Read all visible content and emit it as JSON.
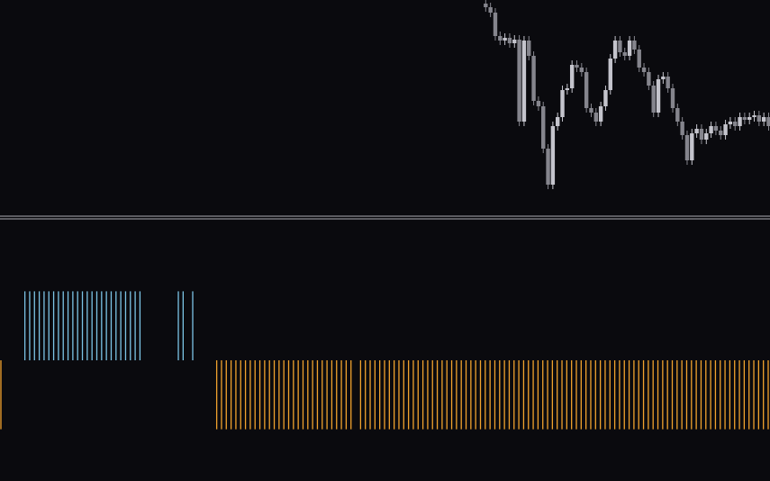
{
  "chart_data": [
    {
      "type": "candlestick",
      "up_color": "#c4c4cc",
      "down_color": "#85858d",
      "xlim": [
        0,
        160
      ],
      "ylim": [
        0,
        240
      ],
      "x": [
        101,
        102,
        103,
        104,
        105,
        106,
        107,
        108,
        109,
        110,
        111,
        112,
        113,
        114,
        115,
        116,
        117,
        118,
        119,
        120,
        121,
        122,
        123,
        124,
        125,
        126,
        127,
        128,
        129,
        130,
        131,
        132,
        133,
        134,
        135,
        136,
        137,
        138,
        139,
        140,
        141,
        142,
        143,
        144,
        145,
        146,
        147,
        148,
        149,
        150,
        151,
        152,
        153,
        154,
        155,
        156,
        157,
        158,
        159,
        160
      ],
      "open": [
        236,
        232,
        226,
        200,
        195,
        198,
        192,
        196,
        105,
        195,
        178,
        128,
        122,
        75,
        35,
        100,
        110,
        140,
        142,
        168,
        165,
        160,
        120,
        115,
        105,
        122,
        140,
        175,
        195,
        182,
        178,
        195,
        185,
        165,
        160,
        145,
        115,
        152,
        155,
        142,
        120,
        105,
        90,
        62,
        92,
        97,
        85,
        92,
        100,
        95,
        90,
        102,
        105,
        100,
        110,
        107,
        110,
        112,
        105,
        110
      ],
      "high": [
        240,
        237,
        231,
        205,
        203,
        203,
        201,
        201,
        200,
        200,
        183,
        133,
        127,
        80,
        105,
        115,
        145,
        147,
        173,
        173,
        170,
        165,
        125,
        120,
        127,
        145,
        180,
        200,
        200,
        187,
        200,
        200,
        190,
        170,
        165,
        150,
        157,
        160,
        160,
        147,
        125,
        110,
        95,
        97,
        102,
        102,
        97,
        105,
        105,
        100,
        107,
        110,
        110,
        115,
        115,
        115,
        117,
        117,
        115,
        115
      ],
      "low": [
        227,
        221,
        195,
        190,
        190,
        187,
        187,
        100,
        100,
        173,
        123,
        117,
        70,
        30,
        30,
        95,
        105,
        135,
        137,
        160,
        155,
        115,
        110,
        100,
        100,
        117,
        135,
        170,
        177,
        173,
        173,
        180,
        160,
        155,
        140,
        110,
        110,
        147,
        137,
        115,
        100,
        85,
        57,
        57,
        87,
        80,
        80,
        87,
        90,
        85,
        85,
        97,
        95,
        95,
        102,
        102,
        105,
        100,
        100,
        95
      ],
      "close": [
        232,
        226,
        200,
        195,
        198,
        192,
        196,
        105,
        195,
        178,
        128,
        122,
        75,
        35,
        100,
        110,
        140,
        142,
        168,
        165,
        160,
        120,
        115,
        105,
        122,
        140,
        175,
        195,
        182,
        178,
        195,
        185,
        165,
        160,
        145,
        115,
        152,
        155,
        142,
        120,
        105,
        90,
        62,
        92,
        97,
        85,
        92,
        100,
        95,
        90,
        102,
        105,
        100,
        110,
        107,
        110,
        112,
        105,
        110,
        100
      ]
    },
    {
      "type": "signal-bar",
      "up_color": "#7cc4e6",
      "down_color": "#f0a22e",
      "xlim": [
        0,
        160
      ],
      "ylim": [
        -1.75,
        2.05
      ],
      "x": [
        0,
        5,
        6,
        7,
        8,
        9,
        10,
        11,
        12,
        13,
        14,
        15,
        16,
        17,
        18,
        19,
        20,
        21,
        22,
        23,
        24,
        25,
        26,
        27,
        28,
        29,
        37,
        38,
        40,
        45,
        46,
        47,
        48,
        49,
        50,
        51,
        52,
        53,
        54,
        55,
        56,
        57,
        58,
        59,
        60,
        61,
        62,
        63,
        64,
        65,
        66,
        67,
        68,
        69,
        70,
        71,
        72,
        73,
        75,
        76,
        77,
        78,
        79,
        80,
        81,
        82,
        83,
        84,
        85,
        86,
        87,
        88,
        89,
        90,
        91,
        92,
        93,
        94,
        95,
        96,
        97,
        98,
        99,
        100,
        101,
        102,
        103,
        104,
        105,
        106,
        107,
        108,
        109,
        110,
        111,
        112,
        113,
        114,
        115,
        116,
        117,
        118,
        119,
        120,
        121,
        122,
        123,
        124,
        125,
        126,
        127,
        128,
        129,
        130,
        131,
        132,
        133,
        134,
        135,
        136,
        137,
        138,
        139,
        140,
        141,
        142,
        143,
        144,
        145,
        146,
        147,
        148,
        149,
        150,
        151,
        152,
        153,
        154,
        155,
        156,
        157,
        158,
        159,
        160
      ],
      "values": [
        -1,
        1,
        1,
        1,
        1,
        1,
        1,
        1,
        1,
        1,
        1,
        1,
        1,
        1,
        1,
        1,
        1,
        1,
        1,
        1,
        1,
        1,
        1,
        1,
        1,
        1,
        1,
        1,
        1,
        -1,
        -1,
        -1,
        -1,
        -1,
        -1,
        -1,
        -1,
        -1,
        -1,
        -1,
        -1,
        -1,
        -1,
        -1,
        -1,
        -1,
        -1,
        -1,
        -1,
        -1,
        -1,
        -1,
        -1,
        -1,
        -1,
        -1,
        -1,
        -1,
        -1,
        -1,
        -1,
        -1,
        -1,
        -1,
        -1,
        -1,
        -1,
        -1,
        -1,
        -1,
        -1,
        -1,
        -1,
        -1,
        -1,
        -1,
        -1,
        -1,
        -1,
        -1,
        -1,
        -1,
        -1,
        -1,
        -1,
        -1,
        -1,
        -1,
        -1,
        -1,
        -1,
        -1,
        -1,
        -1,
        -1,
        -1,
        -1,
        -1,
        -1,
        -1,
        -1,
        -1,
        -1,
        -1,
        -1,
        -1,
        -1,
        -1,
        -1,
        -1,
        -1,
        -1,
        -1,
        -1,
        -1,
        -1,
        -1,
        -1,
        -1,
        -1,
        -1,
        -1,
        -1,
        -1,
        -1,
        -1,
        -1,
        -1,
        -1,
        -1,
        -1,
        -1,
        -1,
        -1,
        -1,
        -1,
        -1,
        -1,
        -1,
        -1,
        -1,
        -1,
        -1,
        -1
      ]
    }
  ]
}
